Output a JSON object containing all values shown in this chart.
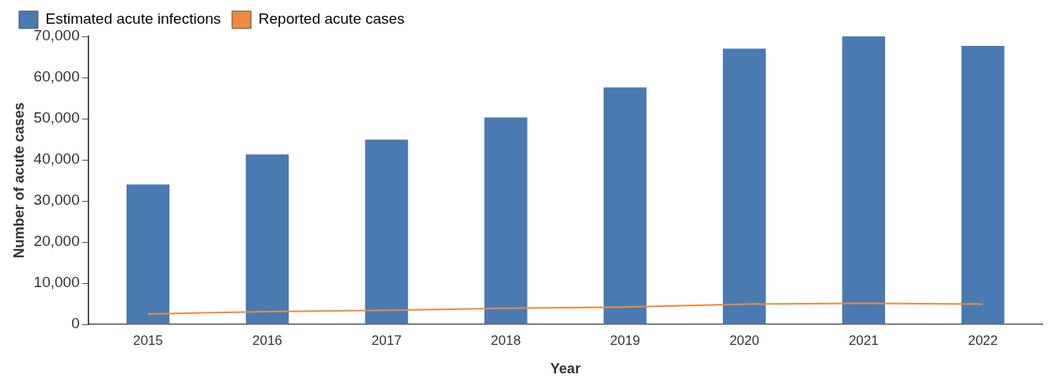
{
  "chart_data": {
    "type": "bar",
    "xlabel": "Year",
    "ylabel": "Number of acute cases",
    "categories": [
      "2015",
      "2016",
      "2017",
      "2018",
      "2019",
      "2020",
      "2021",
      "2022"
    ],
    "series": [
      {
        "name": "Estimated acute infections",
        "color": "#4a7ab2",
        "values": [
          34000,
          41300,
          44900,
          50300,
          57600,
          67000,
          70000,
          67700
        ]
      },
      {
        "name": "Reported acute cases",
        "type": "line",
        "color": "#f08a3a",
        "values": [
          2500,
          3100,
          3400,
          3900,
          4200,
          4900,
          5100,
          4900
        ]
      }
    ],
    "ylim": [
      0,
      70000
    ],
    "yticks": [
      {
        "value": 0,
        "label": "0"
      },
      {
        "value": 10000,
        "label": "10,000"
      },
      {
        "value": 20000,
        "label": "20,000"
      },
      {
        "value": 30000,
        "label": "30,000"
      },
      {
        "value": 40000,
        "label": "40,000"
      },
      {
        "value": 50000,
        "label": "50,000"
      },
      {
        "value": 60000,
        "label": "60,000"
      },
      {
        "value": 70000,
        "label": "70,000"
      }
    ],
    "grid": false,
    "legend": "top left",
    "marker": "none",
    "line_style": "solid"
  }
}
